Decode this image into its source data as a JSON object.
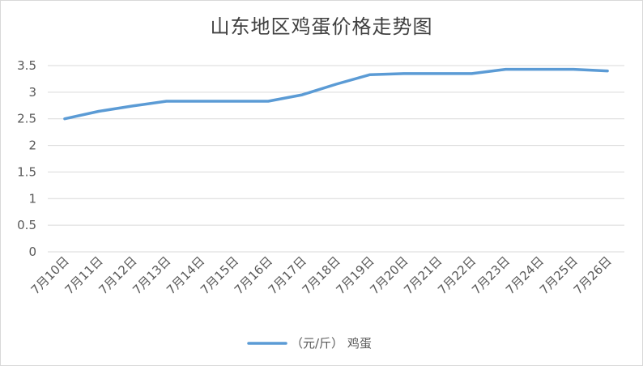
{
  "chart_data": {
    "type": "line",
    "title": "山东地区鸡蛋价格走势图",
    "categories": [
      "7月10日",
      "7月11日",
      "7月12日",
      "7月13日",
      "7月14日",
      "7月15日",
      "7月16日",
      "7月17日",
      "7月18日",
      "7月19日",
      "7月20日",
      "7月21日",
      "7月22日",
      "7月23日",
      "7月24日",
      "7月25日",
      "7月26日"
    ],
    "series": [
      {
        "name": "（元/斤） 鸡蛋",
        "values": [
          2.5,
          2.64,
          2.74,
          2.83,
          2.83,
          2.83,
          2.83,
          2.95,
          3.15,
          3.33,
          3.35,
          3.35,
          3.35,
          3.43,
          3.43,
          3.43,
          3.4
        ]
      }
    ],
    "ylim": [
      0,
      3.5
    ],
    "yticks": [
      "0",
      "0.5",
      "1",
      "1.5",
      "2",
      "2.5",
      "3",
      "3.5"
    ],
    "grid": true,
    "legend": "bottom",
    "line_color": "#5b9bd5"
  }
}
